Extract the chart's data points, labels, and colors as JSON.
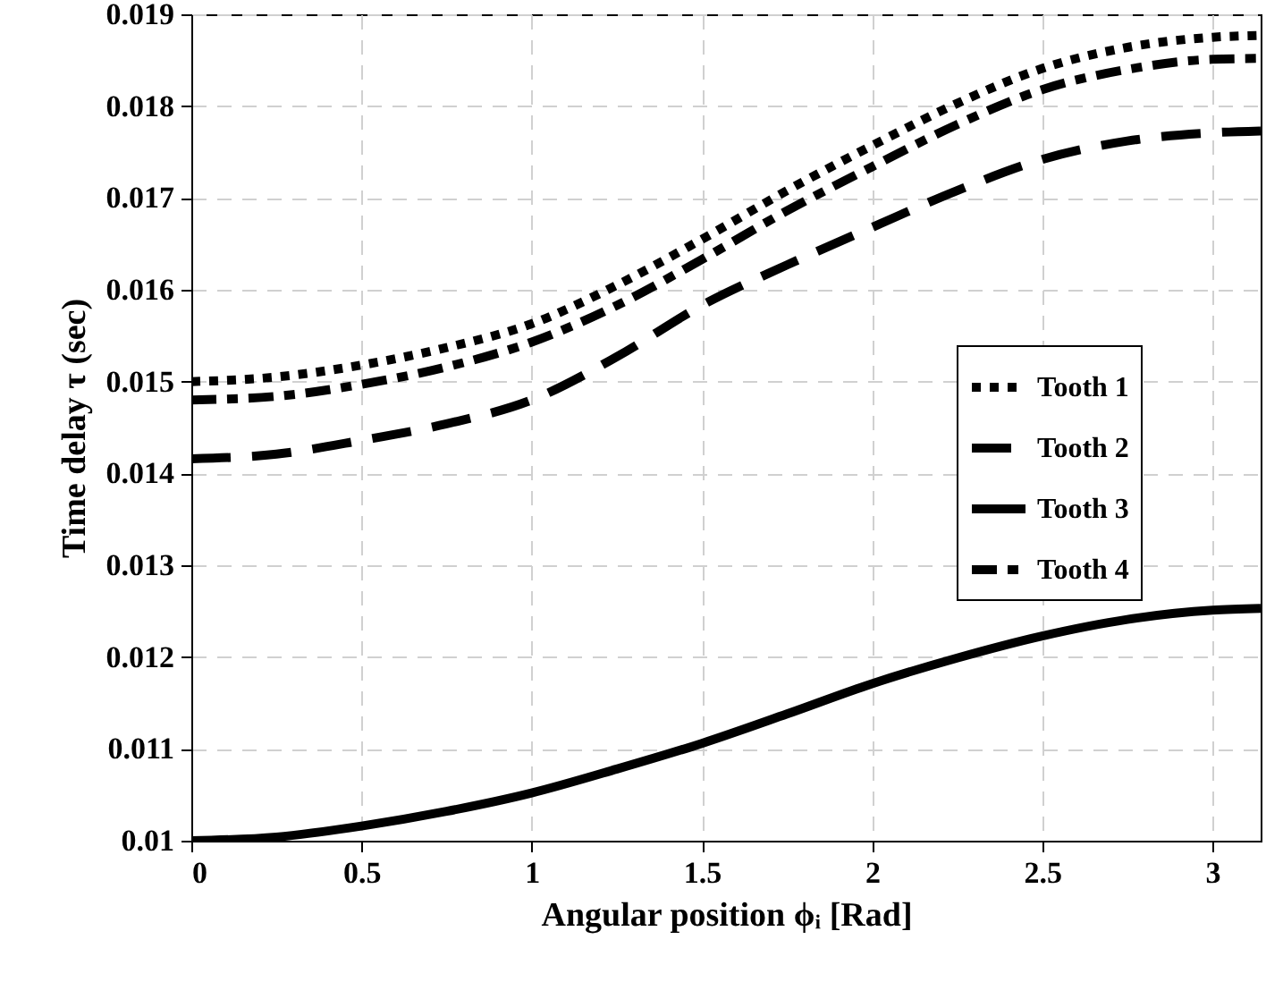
{
  "chart_data": {
    "type": "line",
    "xlabel": "Angular position ϕᵢ [Rad]",
    "ylabel": "Time delay τ (sec)",
    "x": [
      0,
      0.25,
      0.5,
      0.75,
      1,
      1.25,
      1.5,
      1.75,
      2,
      2.25,
      2.5,
      2.75,
      3,
      3.1416
    ],
    "series": [
      {
        "name": "Tooth 1",
        "color": "#000000",
        "line_style": "dotted",
        "values": [
          0.015,
          0.01505,
          0.01518,
          0.01537,
          0.01563,
          0.01605,
          0.01655,
          0.01708,
          0.01757,
          0.01803,
          0.01841,
          0.01864,
          0.01875,
          0.01877
        ]
      },
      {
        "name": "Tooth 2",
        "color": "#000000",
        "line_style": "dashed",
        "values": [
          0.01416,
          0.01421,
          0.01436,
          0.01454,
          0.0148,
          0.01527,
          0.01583,
          0.01627,
          0.01668,
          0.01708,
          0.01742,
          0.01762,
          0.01771,
          0.01773
        ]
      },
      {
        "name": "Tooth 3",
        "color": "#000000",
        "line_style": "solid",
        "values": [
          0.01,
          0.01004,
          0.01016,
          0.01032,
          0.01052,
          0.01078,
          0.01106,
          0.01138,
          0.01171,
          0.01199,
          0.01223,
          0.01241,
          0.01251,
          0.01253
        ]
      },
      {
        "name": "Tooth 4",
        "color": "#000000",
        "line_style": "dashdot",
        "values": [
          0.0148,
          0.01484,
          0.01497,
          0.01516,
          0.01543,
          0.01583,
          0.01633,
          0.01686,
          0.01734,
          0.0178,
          0.01818,
          0.0184,
          0.01851,
          0.01852
        ]
      }
    ],
    "xlim": [
      0,
      3.1416
    ],
    "xticks": [
      0,
      0.5,
      1,
      1.5,
      2,
      2.5,
      3
    ],
    "ylim": [
      0.01,
      0.019
    ],
    "yticks": [
      0.01,
      0.011,
      0.012,
      0.013,
      0.014,
      0.015,
      0.016,
      0.017,
      0.018,
      0.019
    ],
    "grid": true,
    "legend": "right"
  }
}
